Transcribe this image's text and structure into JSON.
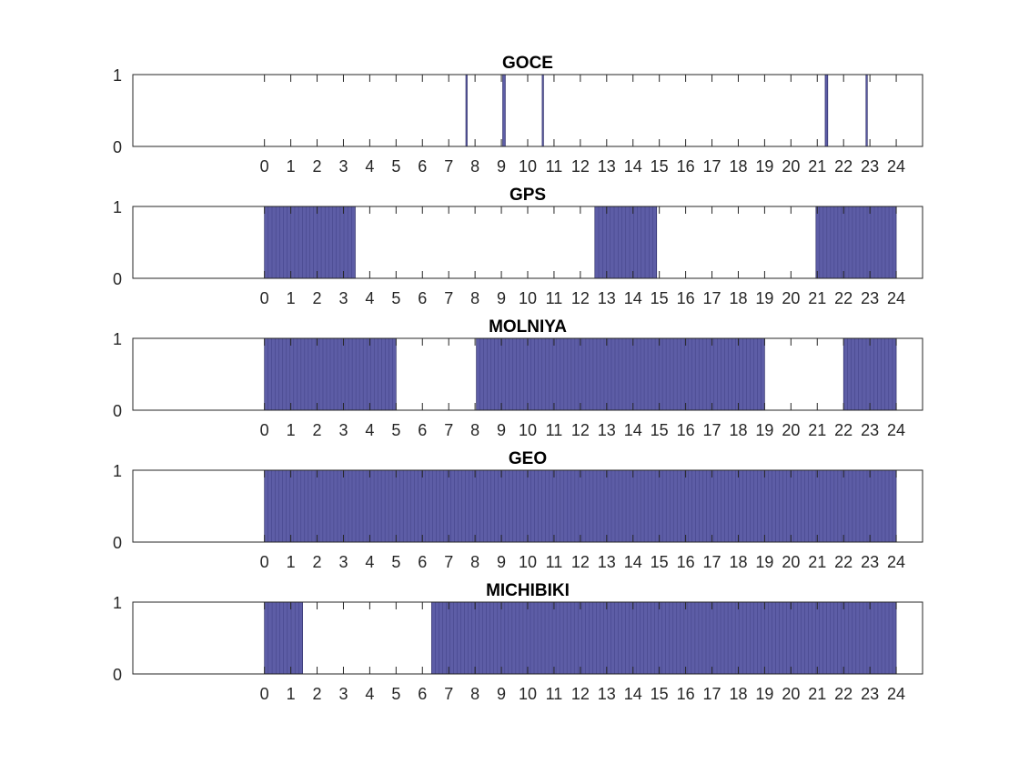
{
  "colors": {
    "fill": "#4b4b9c",
    "edge": "#1f1f5c",
    "axis": "#262626"
  },
  "chart_data": [
    {
      "type": "bar",
      "title": "GOCE",
      "xlim": [
        -5,
        25
      ],
      "ylim": [
        0,
        1
      ],
      "x_ticks": [
        "0",
        "1",
        "2",
        "3",
        "4",
        "5",
        "6",
        "7",
        "8",
        "9",
        "10",
        "11",
        "12",
        "13",
        "14",
        "15",
        "16",
        "17",
        "18",
        "19",
        "20",
        "21",
        "22",
        "23",
        "24"
      ],
      "y_ticks": [
        "0",
        "1"
      ],
      "visible_intervals_hours": [
        [
          7.65,
          7.7
        ],
        [
          9.05,
          9.15
        ],
        [
          10.55,
          10.6
        ],
        [
          21.3,
          21.4
        ],
        [
          22.85,
          22.9
        ]
      ],
      "value_when_visible": 1,
      "grid": false
    },
    {
      "type": "bar",
      "title": "GPS",
      "xlim": [
        -5,
        25
      ],
      "ylim": [
        0,
        1
      ],
      "x_ticks": [
        "0",
        "1",
        "2",
        "3",
        "4",
        "5",
        "6",
        "7",
        "8",
        "9",
        "10",
        "11",
        "12",
        "13",
        "14",
        "15",
        "16",
        "17",
        "18",
        "19",
        "20",
        "21",
        "22",
        "23",
        "24"
      ],
      "y_ticks": [
        "0",
        "1"
      ],
      "visible_intervals_hours": [
        [
          0,
          3.45
        ],
        [
          12.55,
          14.9
        ],
        [
          20.95,
          24
        ]
      ],
      "value_when_visible": 1,
      "grid": false
    },
    {
      "type": "bar",
      "title": "MOLNIYA",
      "xlim": [
        -5,
        25
      ],
      "ylim": [
        0,
        1
      ],
      "x_ticks": [
        "0",
        "1",
        "2",
        "3",
        "4",
        "5",
        "6",
        "7",
        "8",
        "9",
        "10",
        "11",
        "12",
        "13",
        "14",
        "15",
        "16",
        "17",
        "18",
        "19",
        "20",
        "21",
        "22",
        "23",
        "24"
      ],
      "y_ticks": [
        "0",
        "1"
      ],
      "visible_intervals_hours": [
        [
          0,
          5.0
        ],
        [
          8.05,
          19.0
        ],
        [
          22.0,
          24
        ]
      ],
      "value_when_visible": 1,
      "grid": false
    },
    {
      "type": "bar",
      "title": "GEO",
      "xlim": [
        -5,
        25
      ],
      "ylim": [
        0,
        1
      ],
      "x_ticks": [
        "0",
        "1",
        "2",
        "3",
        "4",
        "5",
        "6",
        "7",
        "8",
        "9",
        "10",
        "11",
        "12",
        "13",
        "14",
        "15",
        "16",
        "17",
        "18",
        "19",
        "20",
        "21",
        "22",
        "23",
        "24"
      ],
      "y_ticks": [
        "0",
        "1"
      ],
      "visible_intervals_hours": [
        [
          0,
          24
        ]
      ],
      "value_when_visible": 1,
      "grid": false
    },
    {
      "type": "bar",
      "title": "MICHIBIKI",
      "xlim": [
        -5,
        25
      ],
      "ylim": [
        0,
        1
      ],
      "x_ticks": [
        "0",
        "1",
        "2",
        "3",
        "4",
        "5",
        "6",
        "7",
        "8",
        "9",
        "10",
        "11",
        "12",
        "13",
        "14",
        "15",
        "16",
        "17",
        "18",
        "19",
        "20",
        "21",
        "22",
        "23",
        "24"
      ],
      "y_ticks": [
        "0",
        "1"
      ],
      "visible_intervals_hours": [
        [
          0,
          1.45
        ],
        [
          6.35,
          24
        ]
      ],
      "value_when_visible": 1,
      "grid": false
    }
  ]
}
